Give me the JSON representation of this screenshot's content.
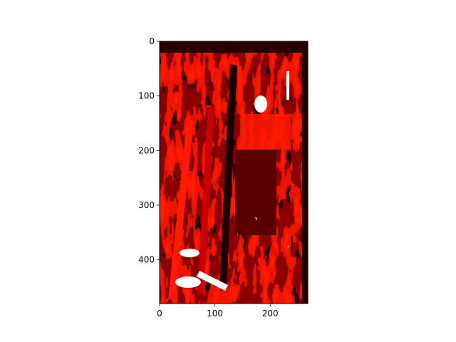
{
  "chart_data": {
    "type": "heatmap",
    "title": "",
    "xlabel": "",
    "ylabel": "",
    "image_width": 268,
    "image_height": 480,
    "xlim": [
      0,
      268
    ],
    "ylim": [
      480,
      0
    ],
    "x_ticks": [
      0,
      100,
      200
    ],
    "y_ticks": [
      0,
      100,
      200,
      300,
      400
    ],
    "colormap": "hot",
    "grid": false,
    "legend": "none",
    "colors": {
      "black": "#000000",
      "dark_red": "#3a0000",
      "red": "#c80000",
      "bright_red": "#ff1a00",
      "white": "#ffffff"
    }
  }
}
